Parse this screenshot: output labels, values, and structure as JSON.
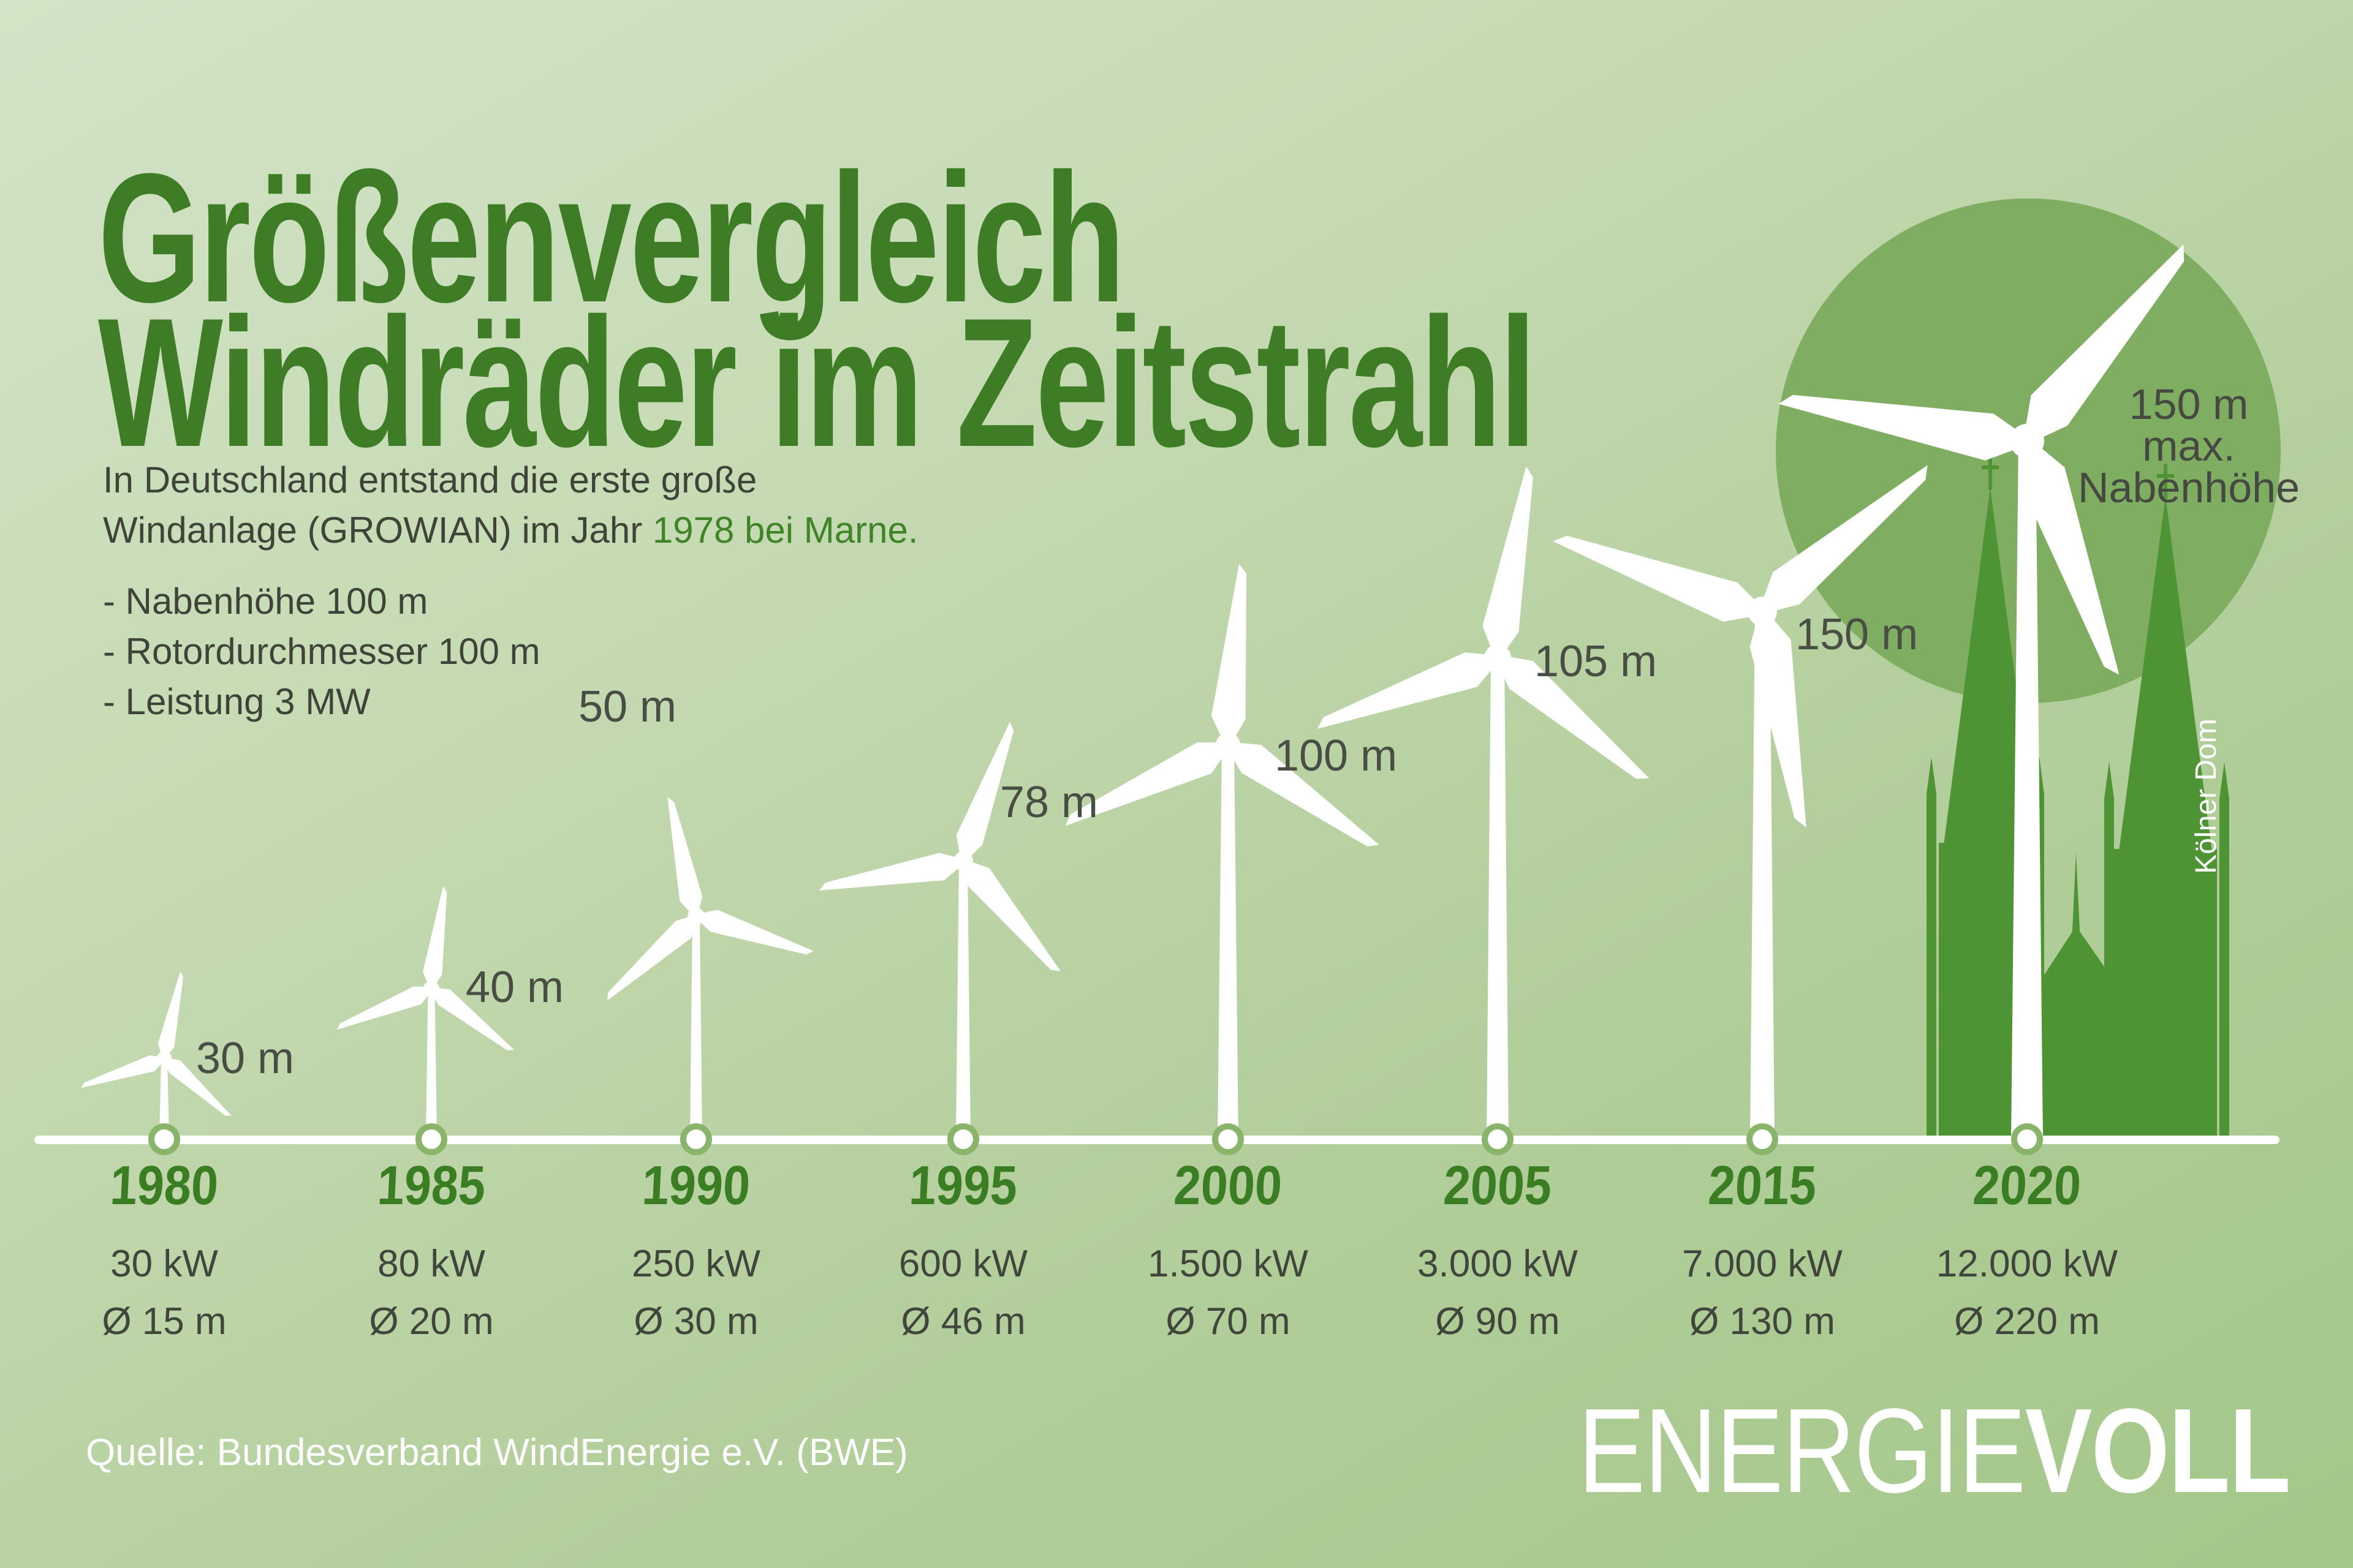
{
  "title": {
    "line1": "Größenvergleich",
    "line2": "Windräder im Zeitstrahl"
  },
  "intro": {
    "line1": "In Deutschland entstand die erste große",
    "line2_plain": "Windanlage (GROWIAN) im Jahr ",
    "line2_green": "1978 bei Marne.",
    "bullets": [
      "- Nabenhöhe 100 m",
      "- Rotordurchmesser 100 m",
      "- Leistung 3 MW"
    ]
  },
  "chart_data": {
    "type": "bar",
    "title": "Größenvergleich Windräder im Zeitstrahl",
    "categories": [
      "1980",
      "1985",
      "1990",
      "1995",
      "2000",
      "2005",
      "2015",
      "2020"
    ],
    "series": [
      {
        "name": "Nabenhöhe",
        "unit": "m",
        "values": [
          30,
          40,
          50,
          78,
          100,
          105,
          150,
          150
        ]
      },
      {
        "name": "Leistung",
        "unit": "kW",
        "values": [
          30,
          80,
          250,
          600,
          1500,
          3000,
          7000,
          12000
        ]
      },
      {
        "name": "Rotordurchmesser",
        "unit": "m",
        "values": [
          15,
          20,
          30,
          46,
          70,
          90,
          130,
          220
        ]
      }
    ],
    "hub_height_labels": [
      "30 m",
      "40 m",
      "50 m",
      "78 m",
      "100 m",
      "105 m",
      "150 m"
    ],
    "hub_note_lines": [
      "150 m",
      "max.",
      "Nabenhöhe"
    ],
    "power_labels": [
      "30 kW",
      "80 kW",
      "250 kW",
      "600 kW",
      "1.500 kW",
      "3.000 kW",
      "7.000 kW",
      "12.000 kW"
    ],
    "diameter_labels": [
      "Ø 15 m",
      "Ø 20 m",
      "Ø 30 m",
      "Ø 46 m",
      "Ø 70 m",
      "Ø 90 m",
      "Ø 130 m",
      "Ø 220 m"
    ],
    "comparison_label": "Kölner Dom",
    "xlabel": "",
    "ylabel": "",
    "legend_position": "none"
  },
  "source": "Quelle: Bundesverband WindEnergie e.V. (BWE)",
  "logo": {
    "part1": "ENERGIE",
    "part2": "VOLL"
  },
  "colors": {
    "background_top": "#d2e3c7",
    "background_bottom": "#a3c789",
    "title_green": "#3e7d26",
    "year_green": "#3a7d22",
    "accent_green": "#3f8426",
    "body_text": "#3e4438",
    "label_text": "#484e44",
    "circle_fill": "#7fae63",
    "cathedral_green": "#4f9434",
    "turbine_white": "#ffffff",
    "node_ring": "#8ab46a"
  }
}
